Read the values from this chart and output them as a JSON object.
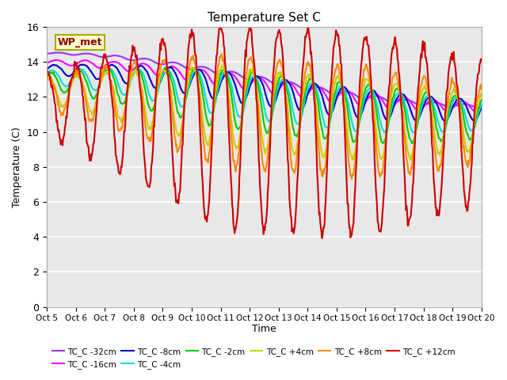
{
  "title": "Temperature Set C",
  "xlabel": "Time",
  "ylabel": "Temperature (C)",
  "ylim": [
    0,
    16
  ],
  "xlim": [
    0,
    15
  ],
  "xtick_labels": [
    "Oct 5",
    "Oct 6",
    "Oct 7",
    "Oct 8",
    "Oct 9",
    "Oct 10",
    "Oct 11",
    "Oct 12",
    "Oct 13",
    "Oct 14",
    "Oct 15",
    "Oct 16",
    "Oct 17",
    "Oct 18",
    "Oct 19",
    "Oct 20"
  ],
  "ytick_vals": [
    0,
    2,
    4,
    6,
    8,
    10,
    12,
    14,
    16
  ],
  "bg_color": "#e8e8e8",
  "annotation_text": "WP_met",
  "annotation_color": "#8B0000",
  "annotation_bg": "#ffffcc",
  "annotation_border": "#aaaa00",
  "series": [
    {
      "label": "TC_C -32cm",
      "color": "#9933ff",
      "lw": 1.5
    },
    {
      "label": "TC_C -16cm",
      "color": "#ff00ff",
      "lw": 1.5
    },
    {
      "label": "TC_C -8cm",
      "color": "#0000cc",
      "lw": 1.5
    },
    {
      "label": "TC_C -4cm",
      "color": "#00dddd",
      "lw": 1.5
    },
    {
      "label": "TC_C -2cm",
      "color": "#00cc00",
      "lw": 1.5
    },
    {
      "label": "TC_C +4cm",
      "color": "#cccc00",
      "lw": 1.5
    },
    {
      "label": "TC_C +8cm",
      "color": "#ff8800",
      "lw": 1.5
    },
    {
      "label": "TC_C +12cm",
      "color": "#cc0000",
      "lw": 1.5
    }
  ],
  "legend_ncol": 6,
  "figsize": [
    6.4,
    4.8
  ],
  "dpi": 100
}
